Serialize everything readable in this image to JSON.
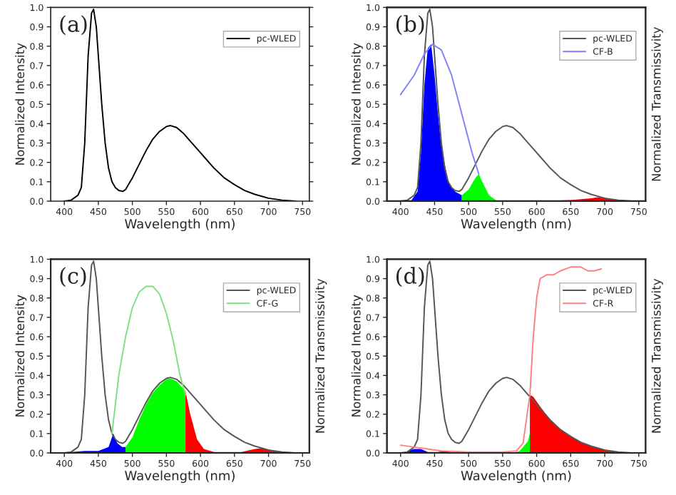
{
  "chart_data": [
    {
      "type": "line",
      "xlabel": "Wavelength (nm)",
      "ylabel": "Normalized Intensity",
      "annotations": [
        "(a)"
      ],
      "legend": "top right",
      "xlim": [
        380,
        760
      ],
      "xticks": [
        400,
        450,
        500,
        550,
        600,
        650,
        700,
        750
      ],
      "ylim": [
        0,
        1.0
      ],
      "yticks": [
        {
          "value": 0,
          "label": "0.0"
        },
        {
          "value": 0.1,
          "label": "0.1"
        },
        {
          "value": 0.2,
          "label": "0.2"
        },
        {
          "value": 0.3,
          "label": "0.3"
        },
        {
          "value": 0.4,
          "label": "0.4"
        },
        {
          "value": 0.5,
          "label": "0.5"
        },
        {
          "value": 0.6,
          "label": "0.6"
        },
        {
          "value": 0.7,
          "label": "0.7"
        },
        {
          "value": 0.8,
          "label": "0.8"
        },
        {
          "value": 0.9,
          "label": "0.9"
        },
        {
          "value": 1.0,
          "label": "1.0"
        }
      ],
      "series": [
        {
          "name": "pc-WLED",
          "color": "#000000",
          "x": [
            400,
            410,
            420,
            425,
            430,
            435,
            440,
            443,
            447,
            450,
            455,
            460,
            465,
            470,
            475,
            480,
            486,
            490,
            495,
            500,
            510,
            520,
            530,
            540,
            550,
            556,
            565,
            575,
            585,
            595,
            605,
            620,
            635,
            650,
            665,
            680,
            700,
            720,
            740
          ],
          "values": [
            0,
            0.005,
            0.03,
            0.07,
            0.3,
            0.75,
            0.97,
            0.99,
            0.9,
            0.75,
            0.5,
            0.3,
            0.17,
            0.1,
            0.07,
            0.055,
            0.05,
            0.06,
            0.09,
            0.12,
            0.19,
            0.26,
            0.32,
            0.36,
            0.385,
            0.39,
            0.38,
            0.35,
            0.31,
            0.27,
            0.23,
            0.17,
            0.12,
            0.085,
            0.055,
            0.035,
            0.015,
            0.005,
            0
          ]
        }
      ]
    },
    {
      "type": "line",
      "xlabel": "Wavelength (nm)",
      "ylabel": "Normalized Intensity",
      "y2label": "Normalized Transmissivity",
      "annotations": [
        "(b)"
      ],
      "legend": "top right",
      "xlim": [
        380,
        760
      ],
      "xticks": [
        400,
        450,
        500,
        550,
        600,
        650,
        700,
        750
      ],
      "ylim": [
        0,
        1.0
      ],
      "yticks": [
        {
          "value": 0,
          "label": "0.0"
        },
        {
          "value": 0.1,
          "label": "0.1"
        },
        {
          "value": 0.2,
          "label": "0.2"
        },
        {
          "value": 0.3,
          "label": "0.3"
        },
        {
          "value": 0.4,
          "label": "0.4"
        },
        {
          "value": 0.5,
          "label": "0.5"
        },
        {
          "value": 0.6,
          "label": "0.6"
        },
        {
          "value": 0.7,
          "label": "0.7"
        },
        {
          "value": 0.8,
          "label": "0.8"
        },
        {
          "value": 0.9,
          "label": "0.9"
        },
        {
          "value": 1.0,
          "label": "1.0"
        }
      ],
      "series": [
        {
          "type": "area",
          "color": "#0000ff",
          "x": [
            415,
            425,
            430,
            435,
            440,
            445,
            450,
            455,
            460,
            470,
            480,
            490
          ],
          "values": [
            0,
            0.05,
            0.25,
            0.6,
            0.79,
            0.81,
            0.65,
            0.45,
            0.28,
            0.1,
            0.05,
            0.03
          ]
        },
        {
          "type": "area",
          "color": "#00ff00",
          "x": [
            490,
            500,
            510,
            515,
            520,
            530,
            540
          ],
          "values": [
            0.03,
            0.06,
            0.12,
            0.14,
            0.1,
            0.03,
            0.005
          ]
        },
        {
          "type": "area",
          "color": "#ff0000",
          "x": [
            600,
            650,
            680,
            690,
            700,
            720,
            750
          ],
          "values": [
            0,
            0.005,
            0.015,
            0.02,
            0.015,
            0.005,
            0
          ]
        },
        {
          "name": "pc-WLED",
          "color": "#555555",
          "x": [
            400,
            410,
            420,
            425,
            430,
            435,
            440,
            443,
            447,
            450,
            455,
            460,
            465,
            470,
            475,
            480,
            486,
            490,
            495,
            500,
            510,
            520,
            530,
            540,
            550,
            556,
            565,
            575,
            585,
            595,
            605,
            620,
            635,
            650,
            665,
            680,
            700,
            720,
            740
          ],
          "values": [
            0,
            0.005,
            0.03,
            0.07,
            0.3,
            0.75,
            0.97,
            0.99,
            0.9,
            0.75,
            0.5,
            0.3,
            0.17,
            0.1,
            0.07,
            0.055,
            0.05,
            0.06,
            0.09,
            0.12,
            0.19,
            0.26,
            0.32,
            0.36,
            0.385,
            0.39,
            0.38,
            0.35,
            0.31,
            0.27,
            0.23,
            0.17,
            0.12,
            0.085,
            0.055,
            0.035,
            0.015,
            0.005,
            0
          ]
        },
        {
          "name": "CF-B",
          "color": "#8080ff",
          "x": [
            400,
            410,
            420,
            435,
            447,
            460,
            475,
            490,
            505,
            515
          ],
          "values": [
            0.55,
            0.6,
            0.65,
            0.76,
            0.81,
            0.78,
            0.65,
            0.45,
            0.25,
            0.14
          ]
        }
      ]
    },
    {
      "type": "line",
      "xlabel": "Wavelength (nm)",
      "ylabel": "Normalized Intensity",
      "y2label": "Normalized Transmissivity",
      "annotations": [
        "(c)"
      ],
      "legend": "top right",
      "xlim": [
        380,
        760
      ],
      "xticks": [
        400,
        450,
        500,
        550,
        600,
        650,
        700,
        750
      ],
      "ylim": [
        0,
        1.0
      ],
      "yticks": [
        {
          "value": 0,
          "label": "0.0"
        },
        {
          "value": 0.1,
          "label": "0.1"
        },
        {
          "value": 0.2,
          "label": "0.2"
        },
        {
          "value": 0.3,
          "label": "0.3"
        },
        {
          "value": 0.4,
          "label": "0.4"
        },
        {
          "value": 0.5,
          "label": "0.5"
        },
        {
          "value": 0.6,
          "label": "0.6"
        },
        {
          "value": 0.7,
          "label": "0.7"
        },
        {
          "value": 0.8,
          "label": "0.8"
        },
        {
          "value": 0.9,
          "label": "0.9"
        },
        {
          "value": 1.0,
          "label": "1.0"
        }
      ],
      "series": [
        {
          "type": "area",
          "color": "#0000ff",
          "x": [
            410,
            430,
            450,
            465,
            472,
            478,
            485,
            490
          ],
          "values": [
            0.005,
            0.01,
            0.01,
            0.03,
            0.1,
            0.05,
            0.03,
            0.03
          ]
        },
        {
          "type": "area",
          "color": "#00ff00",
          "x": [
            490,
            500,
            510,
            520,
            530,
            540,
            550,
            556,
            565,
            575,
            578
          ],
          "values": [
            0.03,
            0.08,
            0.17,
            0.25,
            0.31,
            0.35,
            0.38,
            0.385,
            0.37,
            0.33,
            0.32
          ]
        },
        {
          "type": "area",
          "color": "#ff0000",
          "x": [
            578,
            585,
            595,
            605,
            620,
            660,
            680,
            690,
            710,
            740
          ],
          "values": [
            0.32,
            0.2,
            0.07,
            0.02,
            0.005,
            0.005,
            0.02,
            0.025,
            0.01,
            0
          ]
        },
        {
          "name": "pc-WLED",
          "color": "#555555",
          "x": [
            400,
            410,
            420,
            425,
            430,
            435,
            440,
            443,
            447,
            450,
            455,
            460,
            465,
            470,
            475,
            480,
            486,
            490,
            495,
            500,
            510,
            520,
            530,
            540,
            550,
            556,
            565,
            575,
            585,
            595,
            605,
            620,
            635,
            650,
            665,
            680,
            700,
            720,
            740
          ],
          "values": [
            0,
            0.005,
            0.03,
            0.07,
            0.3,
            0.75,
            0.97,
            0.99,
            0.9,
            0.75,
            0.5,
            0.3,
            0.17,
            0.1,
            0.07,
            0.055,
            0.05,
            0.06,
            0.09,
            0.12,
            0.19,
            0.26,
            0.32,
            0.36,
            0.385,
            0.39,
            0.38,
            0.35,
            0.31,
            0.27,
            0.23,
            0.17,
            0.12,
            0.085,
            0.055,
            0.035,
            0.015,
            0.005,
            0
          ]
        },
        {
          "name": "CF-G",
          "color": "#80e080",
          "x": [
            470,
            480,
            490,
            500,
            510,
            520,
            530,
            540,
            550,
            560,
            570,
            578
          ],
          "values": [
            0.1,
            0.4,
            0.6,
            0.75,
            0.83,
            0.86,
            0.86,
            0.82,
            0.72,
            0.58,
            0.4,
            0.3
          ]
        }
      ]
    },
    {
      "type": "line",
      "xlabel": "Wavelength (nm)",
      "ylabel": "Normalized Intensity",
      "y2label": "Normalized Transmissivity",
      "annotations": [
        "(d)"
      ],
      "legend": "top right",
      "xlim": [
        380,
        760
      ],
      "xticks": [
        400,
        450,
        500,
        550,
        600,
        650,
        700,
        750
      ],
      "ylim": [
        0,
        1.0
      ],
      "yticks": [
        {
          "value": 0,
          "label": "0.0"
        },
        {
          "value": 0.1,
          "label": "0.1"
        },
        {
          "value": 0.2,
          "label": "0.2"
        },
        {
          "value": 0.3,
          "label": "0.3"
        },
        {
          "value": 0.4,
          "label": "0.4"
        },
        {
          "value": 0.5,
          "label": "0.5"
        },
        {
          "value": 0.6,
          "label": "0.6"
        },
        {
          "value": 0.7,
          "label": "0.7"
        },
        {
          "value": 0.8,
          "label": "0.8"
        },
        {
          "value": 0.9,
          "label": "0.9"
        },
        {
          "value": 1.0,
          "label": "1.0"
        }
      ],
      "series": [
        {
          "type": "area",
          "color": "#0000ff",
          "x": [
            410,
            420,
            430,
            440,
            455,
            465,
            475,
            490
          ],
          "values": [
            0.01,
            0.02,
            0.02,
            0.005,
            0.005,
            0.01,
            0.005,
            0
          ]
        },
        {
          "type": "area",
          "color": "#00ff00",
          "x": [
            565,
            575,
            580,
            587,
            590
          ],
          "values": [
            0,
            0.01,
            0.03,
            0.06,
            0.1
          ]
        },
        {
          "type": "area",
          "color": "#ff0000",
          "x": [
            590,
            595,
            605,
            620,
            635,
            650,
            665,
            680,
            700,
            720,
            740
          ],
          "values": [
            0.3,
            0.29,
            0.24,
            0.17,
            0.12,
            0.085,
            0.055,
            0.035,
            0.015,
            0.005,
            0
          ]
        },
        {
          "name": "pc-WLED",
          "color": "#555555",
          "x": [
            400,
            410,
            420,
            425,
            430,
            435,
            440,
            443,
            447,
            450,
            455,
            460,
            465,
            470,
            475,
            480,
            486,
            490,
            495,
            500,
            510,
            520,
            530,
            540,
            550,
            556,
            565,
            575,
            585,
            595,
            605,
            620,
            635,
            650,
            665,
            680,
            700,
            720,
            740
          ],
          "values": [
            0,
            0.005,
            0.03,
            0.07,
            0.3,
            0.75,
            0.97,
            0.99,
            0.9,
            0.75,
            0.5,
            0.3,
            0.17,
            0.1,
            0.07,
            0.055,
            0.05,
            0.06,
            0.09,
            0.12,
            0.19,
            0.26,
            0.32,
            0.36,
            0.385,
            0.39,
            0.38,
            0.35,
            0.31,
            0.27,
            0.23,
            0.17,
            0.12,
            0.085,
            0.055,
            0.035,
            0.015,
            0.005,
            0
          ]
        },
        {
          "name": "CF-R",
          "color": "#ff8080",
          "x": [
            400,
            420,
            440,
            460,
            500,
            550,
            570,
            580,
            590,
            595,
            600,
            605,
            615,
            625,
            635,
            650,
            665,
            675,
            685,
            695
          ],
          "values": [
            0.04,
            0.03,
            0.02,
            0.01,
            0.005,
            0.005,
            0.01,
            0.05,
            0.3,
            0.6,
            0.8,
            0.9,
            0.92,
            0.92,
            0.94,
            0.96,
            0.96,
            0.94,
            0.94,
            0.95
          ]
        }
      ]
    }
  ]
}
